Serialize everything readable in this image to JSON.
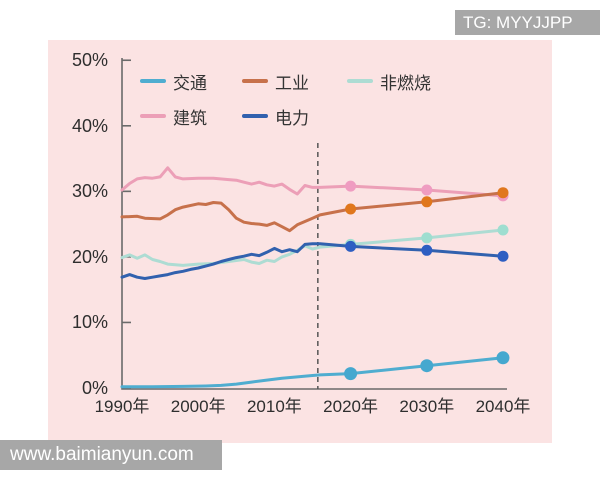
{
  "watermarks": {
    "top_right": "TG: MYYJJPP",
    "bottom_left": "www.baimianyun.com"
  },
  "panel": {
    "background": "#fbe3e3"
  },
  "chart_data": {
    "type": "line",
    "title": "",
    "xlabel": "",
    "ylabel": "",
    "unit": "%",
    "ylim": [
      0,
      50
    ],
    "xlim": [
      1990,
      2042
    ],
    "grid": false,
    "legend_position": "top-left inside plot, two rows",
    "dashed_divider_year": 2015.7,
    "y_ticks": [
      "50%",
      "40%",
      "30%",
      "20%",
      "10%",
      "0%"
    ],
    "y_tick_values": [
      50,
      40,
      30,
      20,
      10,
      0
    ],
    "x_ticks": [
      "1990年",
      "2000年",
      "2010年",
      "2020年",
      "2030年",
      "2040年"
    ],
    "x_tick_values": [
      1990,
      2000,
      2010,
      2020,
      2030,
      2040
    ],
    "axis_color": "#6a6a6a",
    "dash_color": "#555555",
    "draw_order": [
      3,
      2,
      1,
      4,
      0
    ],
    "series": [
      {
        "name": "交通",
        "color": "#4fadd0",
        "marker_color": "#45a8cf",
        "marker_r": 6.5,
        "markers": [
          2020,
          2030,
          2040
        ],
        "points": [
          [
            1990,
            0.2
          ],
          [
            1994,
            0.2
          ],
          [
            1998,
            0.25
          ],
          [
            2001,
            0.3
          ],
          [
            2003,
            0.4
          ],
          [
            2005,
            0.6
          ],
          [
            2007,
            0.9
          ],
          [
            2009,
            1.2
          ],
          [
            2011,
            1.5
          ],
          [
            2013,
            1.7
          ],
          [
            2015,
            1.9
          ],
          [
            2016,
            2.0
          ],
          [
            2020,
            2.2
          ],
          [
            2030,
            3.4
          ],
          [
            2040,
            4.6
          ]
        ]
      },
      {
        "name": "工业",
        "color": "#c7714b",
        "marker_color": "#e0771d",
        "marker_r": 5.5,
        "markers": [
          2020,
          2030,
          2040
        ],
        "points": [
          [
            1990,
            26.1
          ],
          [
            1992,
            26.2
          ],
          [
            1993,
            25.9
          ],
          [
            1995,
            25.8
          ],
          [
            1996,
            26.4
          ],
          [
            1997,
            27.2
          ],
          [
            1998,
            27.6
          ],
          [
            2000,
            28.1
          ],
          [
            2001,
            28.0
          ],
          [
            2002,
            28.3
          ],
          [
            2003,
            28.2
          ],
          [
            2004,
            27.2
          ],
          [
            2005,
            25.9
          ],
          [
            2006,
            25.3
          ],
          [
            2007,
            25.1
          ],
          [
            2008,
            25.0
          ],
          [
            2009,
            24.8
          ],
          [
            2010,
            25.2
          ],
          [
            2011,
            24.6
          ],
          [
            2012,
            24.0
          ],
          [
            2013,
            24.9
          ],
          [
            2014,
            25.4
          ],
          [
            2015,
            25.9
          ],
          [
            2016,
            26.4
          ],
          [
            2020,
            27.3
          ],
          [
            2030,
            28.4
          ],
          [
            2040,
            29.8
          ]
        ]
      },
      {
        "name": "非燃烧",
        "color": "#addcd3",
        "marker_color": "#9eded0",
        "marker_r": 5.5,
        "markers": [
          2020,
          2030,
          2040
        ],
        "points": [
          [
            1990,
            19.9
          ],
          [
            1991,
            20.3
          ],
          [
            1992,
            19.8
          ],
          [
            1993,
            20.3
          ],
          [
            1994,
            19.6
          ],
          [
            1995,
            19.3
          ],
          [
            1996,
            18.9
          ],
          [
            1998,
            18.7
          ],
          [
            2000,
            18.9
          ],
          [
            2002,
            19.0
          ],
          [
            2004,
            19.3
          ],
          [
            2006,
            19.6
          ],
          [
            2007,
            19.2
          ],
          [
            2008,
            19.0
          ],
          [
            2009,
            19.5
          ],
          [
            2010,
            19.3
          ],
          [
            2011,
            20.0
          ],
          [
            2012,
            20.4
          ],
          [
            2013,
            21.0
          ],
          [
            2014,
            21.7
          ],
          [
            2015,
            21.2
          ],
          [
            2016,
            21.5
          ],
          [
            2020,
            21.9
          ],
          [
            2030,
            22.9
          ],
          [
            2040,
            24.1
          ]
        ]
      },
      {
        "name": "建筑",
        "color": "#ec9fb7",
        "marker_color": "#ef9cc1",
        "marker_r": 5.5,
        "markers": [
          2020,
          2030,
          2040
        ],
        "points": [
          [
            1990,
            30.2
          ],
          [
            1991,
            31.2
          ],
          [
            1992,
            31.9
          ],
          [
            1993,
            32.1
          ],
          [
            1994,
            32.0
          ],
          [
            1995,
            32.2
          ],
          [
            1996,
            33.6
          ],
          [
            1997,
            32.2
          ],
          [
            1998,
            31.9
          ],
          [
            2000,
            32.0
          ],
          [
            2002,
            32.0
          ],
          [
            2004,
            31.8
          ],
          [
            2005,
            31.7
          ],
          [
            2006,
            31.4
          ],
          [
            2007,
            31.1
          ],
          [
            2008,
            31.4
          ],
          [
            2009,
            31.0
          ],
          [
            2010,
            30.8
          ],
          [
            2011,
            31.1
          ],
          [
            2012,
            30.3
          ],
          [
            2013,
            29.6
          ],
          [
            2014,
            30.9
          ],
          [
            2015,
            30.6
          ],
          [
            2016,
            30.6
          ],
          [
            2020,
            30.8
          ],
          [
            2030,
            30.2
          ],
          [
            2040,
            29.3
          ]
        ]
      },
      {
        "name": "电力",
        "color": "#3161ae",
        "marker_color": "#2d5ec2",
        "marker_r": 5.5,
        "markers": [
          2020,
          2030,
          2040
        ],
        "points": [
          [
            1990,
            16.9
          ],
          [
            1991,
            17.3
          ],
          [
            1992,
            16.9
          ],
          [
            1993,
            16.7
          ],
          [
            1994,
            16.9
          ],
          [
            1995,
            17.1
          ],
          [
            1996,
            17.3
          ],
          [
            1997,
            17.6
          ],
          [
            1998,
            17.8
          ],
          [
            1999,
            18.1
          ],
          [
            2000,
            18.3
          ],
          [
            2001,
            18.6
          ],
          [
            2002,
            18.9
          ],
          [
            2003,
            19.3
          ],
          [
            2004,
            19.6
          ],
          [
            2005,
            19.9
          ],
          [
            2006,
            20.1
          ],
          [
            2007,
            20.4
          ],
          [
            2008,
            20.2
          ],
          [
            2009,
            20.7
          ],
          [
            2010,
            21.3
          ],
          [
            2011,
            20.8
          ],
          [
            2012,
            21.1
          ],
          [
            2013,
            20.8
          ],
          [
            2014,
            21.9
          ],
          [
            2015,
            22.0
          ],
          [
            2016,
            22.0
          ],
          [
            2020,
            21.6
          ],
          [
            2030,
            21.0
          ],
          [
            2040,
            20.1
          ]
        ]
      }
    ]
  }
}
